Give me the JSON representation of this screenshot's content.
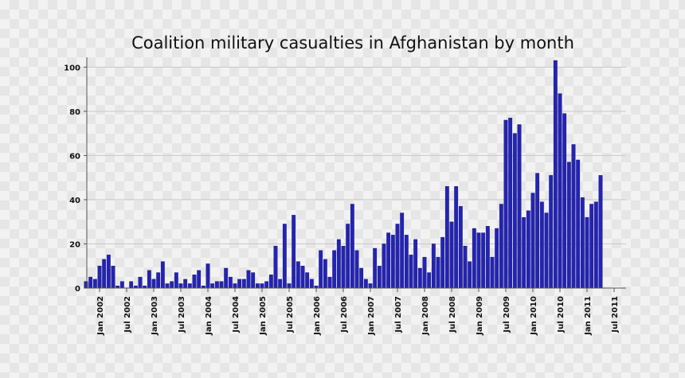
{
  "chart_data": {
    "type": "bar",
    "title": "Coalition military casualties in Afghanistan by month",
    "xlabel": "",
    "ylabel": "",
    "x_start": "2001-10",
    "ylim": [
      0,
      103
    ],
    "y_ticks": [
      0,
      20,
      40,
      60,
      80,
      100
    ],
    "x_tick_labels": [
      {
        "label": "Jan 2002",
        "month": "2002-01"
      },
      {
        "label": "Jul 2002",
        "month": "2002-07"
      },
      {
        "label": "Jan 2003",
        "month": "2003-01"
      },
      {
        "label": "Jul 2003",
        "month": "2003-07"
      },
      {
        "label": "Jan 2004",
        "month": "2004-01"
      },
      {
        "label": "Jul 2004",
        "month": "2004-07"
      },
      {
        "label": "Jan 2005",
        "month": "2005-01"
      },
      {
        "label": "Jul 2005",
        "month": "2005-07"
      },
      {
        "label": "Jan 2006",
        "month": "2006-01"
      },
      {
        "label": "Jul 2006",
        "month": "2006-07"
      },
      {
        "label": "Jan 2007",
        "month": "2007-01"
      },
      {
        "label": "Jul 2007",
        "month": "2007-07"
      },
      {
        "label": "Jan 2008",
        "month": "2008-01"
      },
      {
        "label": "Jul 2008",
        "month": "2008-07"
      },
      {
        "label": "Jan 2009",
        "month": "2009-01"
      },
      {
        "label": "Jul 2009",
        "month": "2009-07"
      },
      {
        "label": "Jan 2010",
        "month": "2010-01"
      },
      {
        "label": "Jul 2010",
        "month": "2010-07"
      },
      {
        "label": "Jan 2011",
        "month": "2011-01"
      },
      {
        "label": "Jul 2011",
        "month": "2011-07"
      }
    ],
    "grid": true,
    "bar_color": "#2323b4",
    "values": [
      3,
      5,
      4,
      10,
      13,
      15,
      10,
      1,
      3,
      0,
      3,
      1,
      5,
      1,
      8,
      4,
      7,
      12,
      2,
      3,
      7,
      2,
      4,
      2,
      6,
      8,
      1,
      11,
      2,
      3,
      3,
      9,
      5,
      2,
      4,
      4,
      8,
      7,
      2,
      2,
      3,
      6,
      19,
      4,
      29,
      2,
      33,
      12,
      10,
      7,
      4,
      1,
      17,
      13,
      5,
      17,
      22,
      19,
      29,
      38,
      17,
      9,
      4,
      2,
      18,
      10,
      20,
      25,
      24,
      29,
      34,
      24,
      15,
      22,
      9,
      14,
      7,
      20,
      14,
      23,
      46,
      30,
      46,
      37,
      19,
      12,
      27,
      25,
      25,
      28,
      14,
      27,
      38,
      76,
      77,
      70,
      74,
      32,
      35,
      43,
      52,
      39,
      34,
      51,
      103,
      88,
      79,
      57,
      65,
      58,
      41,
      32,
      38,
      39,
      51
    ]
  }
}
